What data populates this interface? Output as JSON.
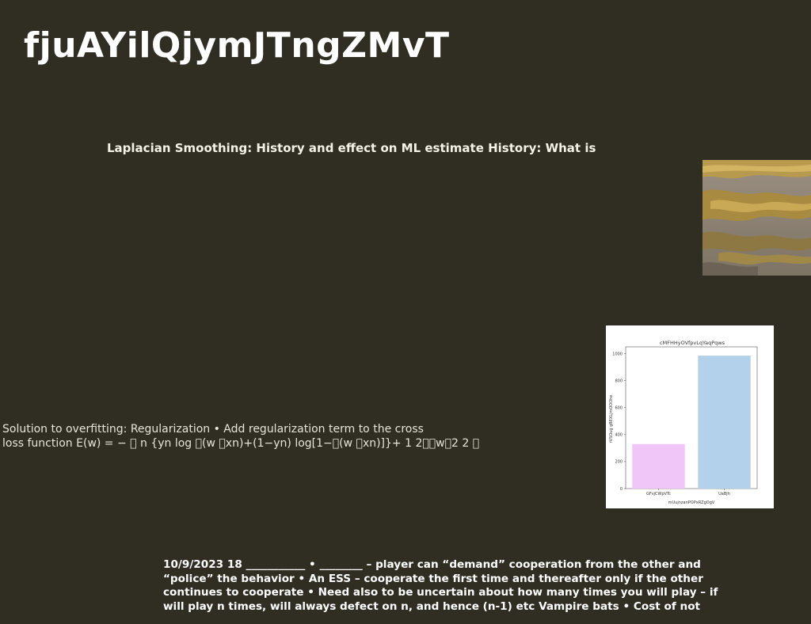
{
  "page": {
    "title": "fjuAYilQjymJTngZMvT",
    "subtitle": "Laplacian Smoothing: History and effect on ML estimate History: What is",
    "body_lines": [
      "Solution to overfitting: Regularization • Add regularization term to the cross",
      "loss function E(w) = − 􏰁 n {yn log 􏰂(w 􏰃xn)+(1−yn) log[1−􏰂(w 􏰃xn)]}+ 1 2􏰅􏰅w􏰅2 2 􏰁"
    ],
    "footer_lines": [
      "10/9/2023 18 ___________ • ________ – player can “demand” cooperation from the other  and",
      "“police” the behavior • An ESS – cooperate the first time and thereafter only if the other",
      "continues to cooperate • Need also to be uncertain about how many times you will play – if",
      "will play n times, will always defect on n, and hence (n-1) etc Vampire bats • Cost of not"
    ]
  },
  "photo": {
    "icon": "marsh-landscape-photo"
  },
  "chart_data": {
    "type": "bar",
    "title": "cMFHHyOVfpvLqYaqPqws",
    "xlabel": "mUujnzanPOPxRZgOgV",
    "ylabel": "rVSOug gBEXLjmOOOhe",
    "categories": [
      "GFvjCWpVTc",
      "UaBjh"
    ],
    "values": [
      330,
      985
    ],
    "colors": [
      "#efc6f7",
      "#b3d1ea"
    ],
    "ylim": [
      0,
      1050
    ],
    "yticks": [
      0,
      200,
      400,
      600,
      800,
      1000
    ],
    "grid": false
  }
}
